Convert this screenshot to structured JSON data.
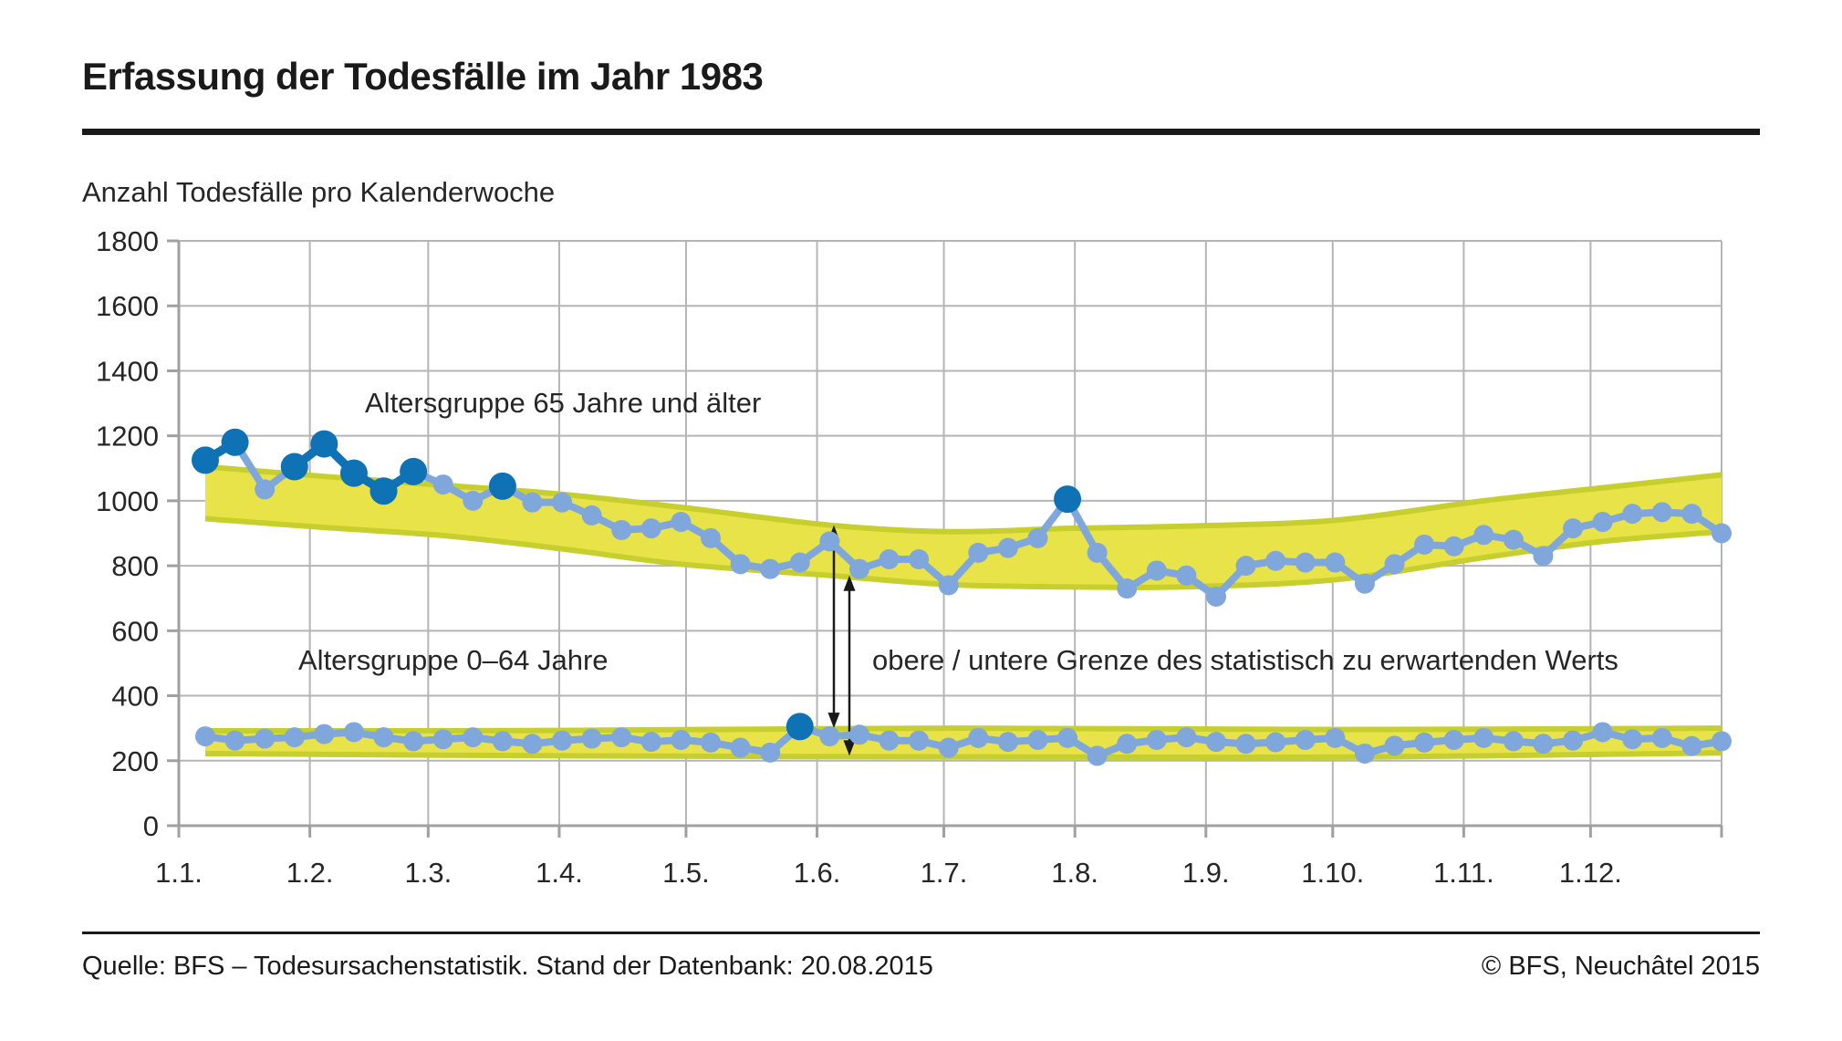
{
  "title": "Erfassung der Todesfälle im Jahr 1983",
  "subtitle": "Anzahl Todesfälle pro Kalenderwoche",
  "footer": {
    "source": "Quelle: BFS – Todesursachenstatistik. Stand der Datenbank: 20.08.2015",
    "copyright": "© BFS, Neuchâtel 2015"
  },
  "colors": {
    "band_fill": "#E9E34A",
    "band_edge": "#C6CF2D",
    "line": "#7FA7DB",
    "highlight_dot": "#0E72B5",
    "grid": "#B5B5B5",
    "axis": "#A0A0A0",
    "arrow": "#1A1A1A",
    "text": "#262626"
  },
  "chart_data": {
    "type": "line",
    "title": "Erfassung der Todesfälle im Jahr 1983",
    "ylabel": "Anzahl Todesfälle pro Kalenderwoche",
    "xlabel": "",
    "ylim": [
      0,
      1800
    ],
    "y_ticks": [
      0,
      200,
      400,
      600,
      800,
      1000,
      1200,
      1400,
      1600,
      1800
    ],
    "x_tick_labels": [
      "1.1.",
      "1.2.",
      "1.3.",
      "1.4.",
      "1.5.",
      "1.6.",
      "1.7.",
      "1.8.",
      "1.9.",
      "1.10.",
      "1.11.",
      "1.12."
    ],
    "weeks": 52,
    "grid": true,
    "annotations": {
      "series_65plus": "Altersgruppe 65 Jahre und älter",
      "series_0_64": "Altersgruppe 0–64 Jahre",
      "bounds": "obere / untere Grenze des statistisch zu erwartenden Werts"
    },
    "series": [
      {
        "name": "Altersgruppe 65 Jahre und älter",
        "values": [
          1125,
          1180,
          1035,
          1105,
          1175,
          1085,
          1030,
          1090,
          1050,
          1000,
          1045,
          995,
          995,
          955,
          910,
          915,
          935,
          885,
          805,
          790,
          810,
          875,
          790,
          820,
          820,
          740,
          840,
          855,
          885,
          1005,
          840,
          730,
          785,
          770,
          705,
          800,
          815,
          810,
          810,
          745,
          805,
          865,
          860,
          895,
          880,
          830,
          915,
          935,
          960,
          965,
          960,
          900
        ],
        "highlighted_weeks": [
          1,
          2,
          4,
          5,
          6,
          7,
          8,
          11,
          30
        ]
      },
      {
        "name": "Altersgruppe 0–64 Jahre",
        "values": [
          275,
          262,
          268,
          272,
          282,
          288,
          272,
          260,
          266,
          272,
          260,
          252,
          262,
          268,
          272,
          258,
          264,
          256,
          240,
          225,
          305,
          275,
          280,
          262,
          262,
          240,
          270,
          258,
          264,
          270,
          215,
          252,
          264,
          272,
          258,
          252,
          257,
          264,
          270,
          222,
          246,
          256,
          264,
          270,
          260,
          252,
          262,
          288,
          266,
          270,
          245,
          260
        ],
        "highlighted_weeks": [
          21
        ]
      }
    ],
    "expected_bands": [
      {
        "name": "Grenzen des statistisch zu erwartenden Werts (65+)",
        "anchor_weeks": [
          1,
          5,
          9,
          13,
          17,
          22,
          26,
          30,
          34,
          39,
          44,
          48,
          52
        ],
        "upper": [
          1105,
          1075,
          1048,
          1020,
          980,
          925,
          905,
          915,
          922,
          940,
          1000,
          1040,
          1080
        ],
        "lower": [
          945,
          918,
          893,
          852,
          805,
          770,
          742,
          735,
          735,
          757,
          825,
          875,
          905
        ]
      },
      {
        "name": "Grenzen des statistisch zu erwartenden Werts (0–64)",
        "anchor_weeks": [
          1,
          13,
          26,
          39,
          52
        ],
        "upper": [
          292,
          293,
          300,
          296,
          300
        ],
        "lower": [
          222,
          215,
          212,
          211,
          224
        ]
      }
    ]
  }
}
